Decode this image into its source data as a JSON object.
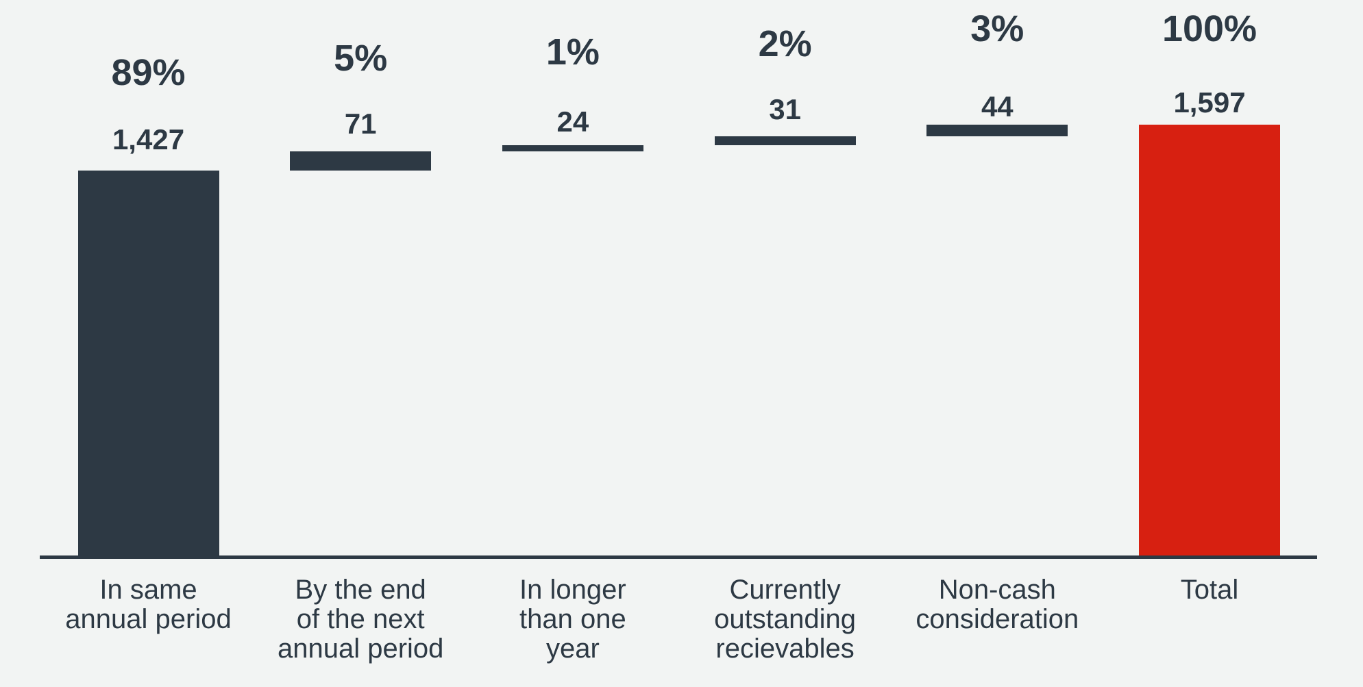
{
  "chart_data": {
    "type": "bar",
    "subtype": "waterfall",
    "title": "",
    "xlabel": "",
    "ylabel": "",
    "grid": false,
    "legend": false,
    "ylim": [
      0,
      1597
    ],
    "categories": [
      "In same annual period",
      "By the end of the next annual period",
      "In longer than one year",
      "Currently outstanding recievables",
      "Non-cash consideration",
      "Total"
    ],
    "category_lines": [
      [
        "In same",
        "annual period"
      ],
      [
        "By the end",
        "of the next",
        "annual period"
      ],
      [
        "In longer",
        "than one",
        "year"
      ],
      [
        "Currently",
        "outstanding",
        "recievables"
      ],
      [
        "Non-cash",
        "consideration"
      ],
      [
        "Total"
      ]
    ],
    "values": [
      1427,
      71,
      24,
      31,
      44,
      1597
    ],
    "value_labels": [
      "1,427",
      "71",
      "24",
      "31",
      "44",
      "1,597"
    ],
    "percent_labels": [
      "89%",
      "5%",
      "1%",
      "2%",
      "3%",
      "100%"
    ],
    "is_total": [
      false,
      false,
      false,
      false,
      false,
      true
    ],
    "bar_colors": [
      "#2d3944",
      "#2d3944",
      "#2d3944",
      "#2d3944",
      "#2d3944",
      "#d72011"
    ],
    "colors": {
      "dark": "#2d3944",
      "total_red": "#d72011",
      "text": "#2d3944",
      "axis": "#2d3944",
      "background": "#f2f4f3"
    }
  }
}
